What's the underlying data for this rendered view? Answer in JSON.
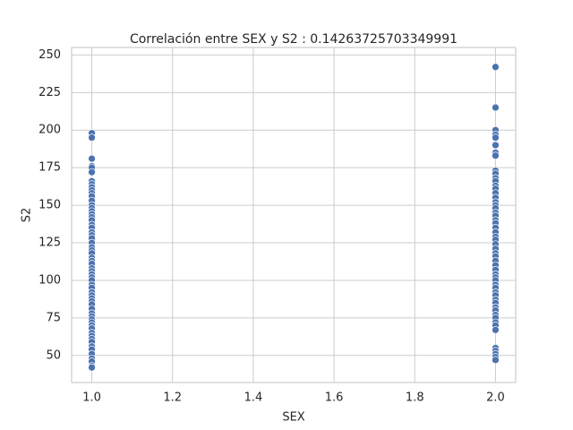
{
  "chart_data": {
    "type": "scatter",
    "title": "Correlación entre SEX y S2 : 0.14263725703349991",
    "xlabel": "SEX",
    "ylabel": "S2",
    "color": "#4c72b0",
    "grid": true,
    "xlim": [
      0.95,
      2.05
    ],
    "ylim": [
      32,
      255
    ],
    "xticks": [
      {
        "value": 1,
        "label": "1.0"
      },
      {
        "value": 1.2,
        "label": "1.2"
      },
      {
        "value": 1.4,
        "label": "1.4"
      },
      {
        "value": 1.6,
        "label": "1.6"
      },
      {
        "value": 1.8,
        "label": "1.8"
      },
      {
        "value": 2,
        "label": "2.0"
      }
    ],
    "yticks": [
      50,
      75,
      100,
      125,
      150,
      175,
      200,
      225,
      250
    ],
    "x": [
      1,
      1,
      1,
      1,
      1,
      1,
      1,
      1,
      1,
      1,
      1,
      1,
      1,
      1,
      1,
      1,
      1,
      1,
      1,
      1,
      1,
      1,
      1,
      1,
      1,
      1,
      1,
      1,
      1,
      1,
      1,
      1,
      1,
      1,
      1,
      1,
      1,
      1,
      1,
      1,
      1,
      1,
      1,
      1,
      1,
      1,
      1,
      1,
      1,
      1,
      1,
      1,
      1,
      1,
      1,
      1,
      1,
      1,
      1,
      1,
      1,
      2,
      2,
      2,
      2,
      2,
      2,
      2,
      2,
      2,
      2,
      2,
      2,
      2,
      2,
      2,
      2,
      2,
      2,
      2,
      2,
      2,
      2,
      2,
      2,
      2,
      2,
      2,
      2,
      2,
      2,
      2,
      2,
      2,
      2,
      2,
      2,
      2,
      2,
      2,
      2,
      2,
      2,
      2,
      2,
      2,
      2,
      2,
      2,
      2,
      2,
      2,
      2,
      2,
      2,
      2
    ],
    "values": [
      198,
      195,
      181,
      176,
      175,
      172,
      166,
      164,
      162,
      160,
      158,
      156,
      153,
      150,
      148,
      146,
      144,
      142,
      140,
      137,
      135,
      132,
      130,
      128,
      125,
      122,
      120,
      118,
      115,
      113,
      111,
      108,
      106,
      104,
      102,
      100,
      97,
      95,
      92,
      90,
      88,
      86,
      84,
      81,
      78,
      76,
      74,
      72,
      70,
      68,
      65,
      63,
      61,
      59,
      56,
      54,
      51,
      48,
      46,
      43,
      42,
      242,
      215,
      200,
      197,
      195,
      190,
      185,
      183,
      173,
      171,
      168,
      166,
      163,
      161,
      158,
      155,
      152,
      150,
      148,
      145,
      143,
      140,
      138,
      135,
      132,
      129,
      127,
      124,
      121,
      118,
      116,
      113,
      110,
      107,
      104,
      102,
      100,
      97,
      95,
      92,
      90,
      87,
      85,
      82,
      80,
      77,
      75,
      72,
      70,
      67,
      55,
      53,
      51,
      49,
      47
    ]
  }
}
